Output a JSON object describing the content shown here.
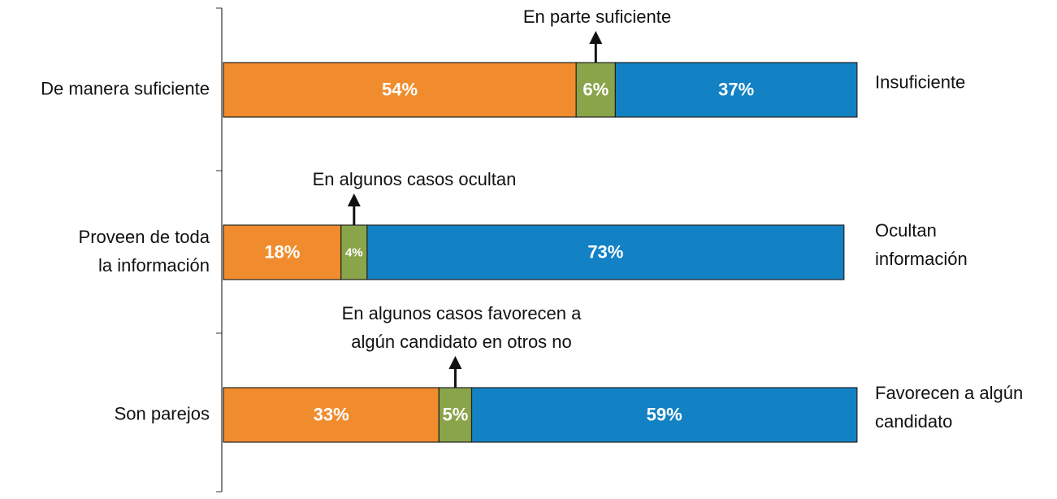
{
  "chart_data": {
    "type": "bar",
    "orientation": "horizontal",
    "stacked": true,
    "categories": [
      [
        "De manera suficiente"
      ],
      [
        "Proveen de toda",
        "la información"
      ],
      [
        "Son parejos"
      ]
    ],
    "right_labels": [
      [
        "Insuficiente"
      ],
      [
        "Ocultan",
        "información"
      ],
      [
        "Favorecen a algún",
        "candidato"
      ]
    ],
    "annotations": [
      [
        "En parte suficiente"
      ],
      [
        "En algunos casos ocultan"
      ],
      [
        "En algunos casos favorecen a",
        "algún candidato en otros no"
      ]
    ],
    "series": [
      {
        "color": "#f08c2e",
        "values": [
          54,
          18,
          33
        ],
        "value_labels": [
          "54%",
          "18%",
          "33%"
        ]
      },
      {
        "color": "#8aa44a",
        "values": [
          6,
          4,
          5
        ],
        "value_labels": [
          "6%",
          "4%",
          "5%"
        ]
      },
      {
        "color": "#1282c4",
        "values": [
          37,
          73,
          59
        ],
        "value_labels": [
          "37%",
          "73%",
          "59%"
        ]
      }
    ]
  }
}
